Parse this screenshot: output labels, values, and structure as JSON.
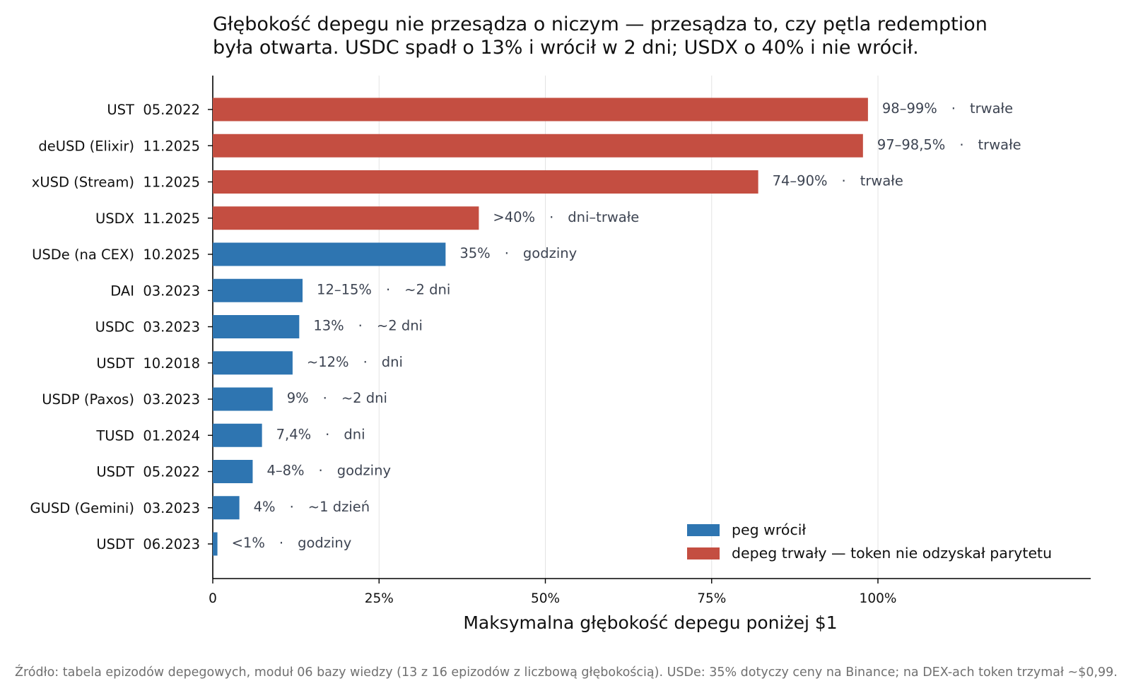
{
  "chart_data": {
    "type": "bar",
    "orientation": "horizontal",
    "title_lines": [
      "Głębokość depegu nie przesądza o niczym — przesądza to, czy pętla redemption",
      "była otwarta. USDC spadł o 13% i wrócił w 2 dni; USDX o 40% i nie wrócił."
    ],
    "xlabel": "Maksymalna głębokość depegu poniżej $1",
    "ylabel": "",
    "xlim": [
      0,
      132
    ],
    "xticks": [
      {
        "value": 0,
        "label": "0"
      },
      {
        "value": 25,
        "label": "25%"
      },
      {
        "value": 50,
        "label": "50%"
      },
      {
        "value": 75,
        "label": "75%"
      },
      {
        "value": 100,
        "label": "100%"
      }
    ],
    "grid": "vertical",
    "legend_position": "lower-right",
    "legend": [
      {
        "key": "returned",
        "label": "peg wrócił",
        "color": "#2e75b1"
      },
      {
        "key": "permanent",
        "label": "depeg trwały — token nie odzyskał parytetu",
        "color": "#c44e41"
      }
    ],
    "bars": [
      {
        "category": "UST  05.2022",
        "value": 98.5,
        "label": "98–99%",
        "duration": "trwałe",
        "status": "permanent"
      },
      {
        "category": "deUSD (Elixir)  11.2025",
        "value": 97.75,
        "label": "97–98,5%",
        "duration": "trwałe",
        "status": "permanent"
      },
      {
        "category": "xUSD (Stream)  11.2025",
        "value": 82,
        "label": "74–90%",
        "duration": "trwałe",
        "status": "permanent"
      },
      {
        "category": "USDX  11.2025",
        "value": 40,
        "label": ">40%",
        "duration": "dni–trwałe",
        "status": "permanent"
      },
      {
        "category": "USDe (na CEX)  10.2025",
        "value": 35,
        "label": "35%",
        "duration": "godziny",
        "status": "returned"
      },
      {
        "category": "DAI  03.2023",
        "value": 13.5,
        "label": "12–15%",
        "duration": "~2 dni",
        "status": "returned"
      },
      {
        "category": "USDC  03.2023",
        "value": 13,
        "label": "13%",
        "duration": "~2 dni",
        "status": "returned"
      },
      {
        "category": "USDT  10.2018",
        "value": 12,
        "label": "~12%",
        "duration": "dni",
        "status": "returned"
      },
      {
        "category": "USDP (Paxos)  03.2023",
        "value": 9,
        "label": "9%",
        "duration": "~2 dni",
        "status": "returned"
      },
      {
        "category": "TUSD  01.2024",
        "value": 7.4,
        "label": "7,4%",
        "duration": "dni",
        "status": "returned"
      },
      {
        "category": "USDT  05.2022",
        "value": 6,
        "label": "4–8%",
        "duration": "godziny",
        "status": "returned"
      },
      {
        "category": "GUSD (Gemini)  03.2023",
        "value": 4,
        "label": "4%",
        "duration": "~1 dzień",
        "status": "returned"
      },
      {
        "category": "USDT  06.2023",
        "value": 0.7,
        "label": "<1%",
        "duration": "godziny",
        "status": "returned"
      }
    ],
    "label_separator": "·",
    "source_note": "Źródło: tabela epizodów depegowych, moduł 06 bazy wiedzy (13 z 16 epizodów z liczbową głębokością). USDe: 35% dotyczy ceny na Binance; na DEX-ach token trzymał ~$0,99."
  }
}
